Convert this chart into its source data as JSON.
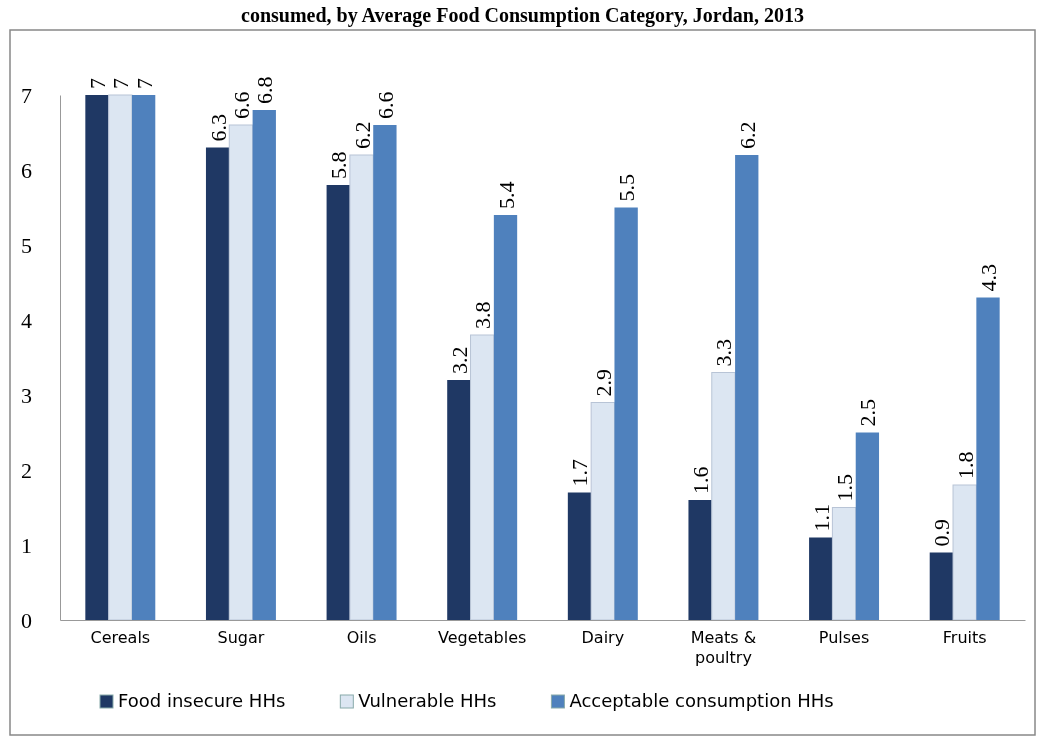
{
  "chart_data": {
    "type": "bar",
    "title": "consumed, by Average Food Consumption Category, Jordan, 2013",
    "categories": [
      "Cereals",
      "Sugar",
      "Oils",
      "Vegetables",
      "Dairy",
      "Meats & poultry",
      "Pulses",
      "Fruits"
    ],
    "series": [
      {
        "name": "Food insecure HHs",
        "color": "#1f3864",
        "values": [
          7,
          6.3,
          5.8,
          3.2,
          1.7,
          1.6,
          1.1,
          0.9
        ]
      },
      {
        "name": "Vulnerable HHs",
        "color": "#dce6f2",
        "values": [
          7,
          6.6,
          6.2,
          3.8,
          2.9,
          3.3,
          1.5,
          1.8
        ]
      },
      {
        "name": "Acceptable consumption HHs",
        "color": "#4f81bd",
        "values": [
          7,
          6.8,
          6.6,
          5.4,
          5.5,
          6.2,
          2.5,
          4.3
        ]
      }
    ],
    "ylim": [
      0,
      7
    ],
    "yticks": [
      0,
      1,
      2,
      3,
      4,
      5,
      6,
      7
    ],
    "data_labels": true,
    "legend": "bottom"
  }
}
